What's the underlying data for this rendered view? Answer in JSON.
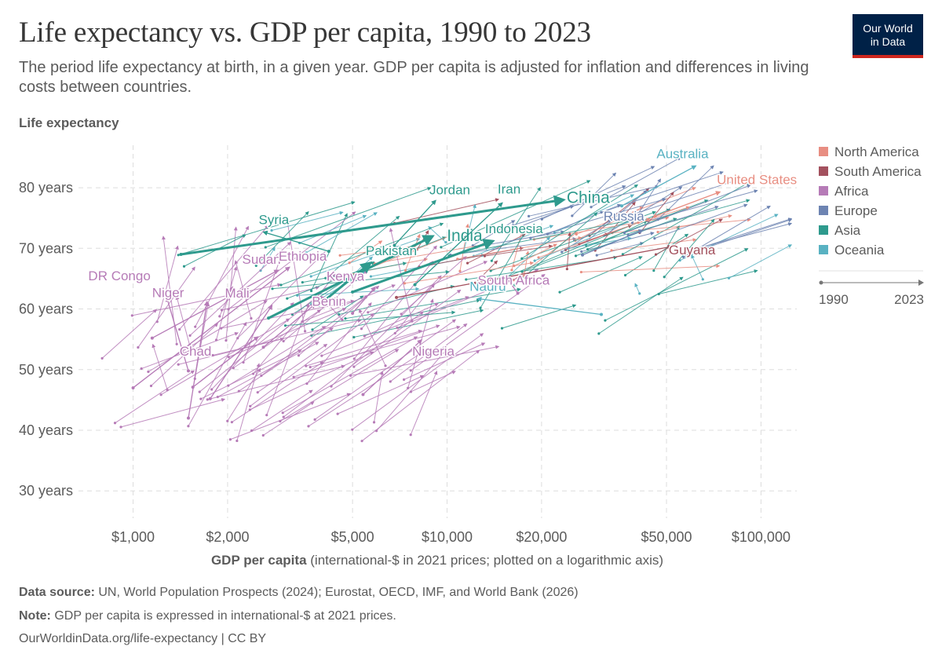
{
  "header": {
    "title": "Life expectancy vs. GDP per capita, 1990 to 2023",
    "subtitle": "The period life expectancy at birth, in a given year. GDP per capita is adjusted for inflation and differences in living costs between countries.",
    "logo_line1": "Our World",
    "logo_line2": "in Data"
  },
  "footer": {
    "source_label": "Data source:",
    "source_text": "UN, World Population Prospects (2024); Eurostat, OECD, IMF, and World Bank (2026)",
    "note_label": "Note:",
    "note_text": "GDP per capita is expressed in international-$ at 2021 prices.",
    "url_text": "OurWorldinData.org/life-expectancy | CC BY"
  },
  "chart_data": {
    "type": "scatter",
    "xlabel_bold": "GDP per capita",
    "xlabel_rest": "(international-$ in 2021 prices; plotted on a logarithmic axis)",
    "ylabel": "Life expectancy",
    "x_scale": "log",
    "xlim": [
      670,
      130000
    ],
    "ylim": [
      25.5,
      87
    ],
    "x_ticks": [
      {
        "value": 1000,
        "label": "$1,000"
      },
      {
        "value": 2000,
        "label": "$2,000"
      },
      {
        "value": 5000,
        "label": "$5,000"
      },
      {
        "value": 10000,
        "label": "$10,000"
      },
      {
        "value": 20000,
        "label": "$20,000"
      },
      {
        "value": 50000,
        "label": "$50,000"
      },
      {
        "value": 100000,
        "label": "$100,000"
      }
    ],
    "y_ticks": [
      {
        "value": 30,
        "label": "30 years"
      },
      {
        "value": 40,
        "label": "40 years"
      },
      {
        "value": 50,
        "label": "50 years"
      },
      {
        "value": 60,
        "label": "60 years"
      },
      {
        "value": 70,
        "label": "70 years"
      },
      {
        "value": 80,
        "label": "80 years"
      }
    ],
    "grid": true,
    "legend_position": "right",
    "legend": [
      {
        "region": "North America",
        "color": "#e56e5a"
      },
      {
        "region": "South America",
        "color": "#9a5129"
      },
      {
        "region": "Africa",
        "color": "#a2559c"
      },
      {
        "region": "Europe",
        "color": "#4c6a9c"
      },
      {
        "region": "Asia",
        "color": "#00847e"
      },
      {
        "region": "Oceania",
        "color": "#38aaba"
      }
    ],
    "legend_colors_display": {
      "North America": "#e88e82",
      "South America": "#a3515e",
      "Africa": "#b67bb7",
      "Europe": "#6d84b2",
      "Asia": "#2e9a8d",
      "Oceania": "#59b2c2"
    },
    "time_legend": {
      "start": "1990",
      "end": "2023"
    },
    "series": [
      {
        "name": "China",
        "region": "Asia",
        "x": [
          1990,
          2023
        ],
        "gdp": [
          1420,
          23500
        ],
        "life": [
          69.0,
          78.0
        ],
        "label": "China",
        "label_size": "large",
        "emphasis": true
      },
      {
        "name": "India",
        "region": "Asia",
        "x": [
          1990,
          2023
        ],
        "gdp": [
          2700,
          9000
        ],
        "life": [
          58.5,
          72.0
        ],
        "label": "India",
        "label_size": "large",
        "emphasis": true
      },
      {
        "name": "Indonesia",
        "region": "Asia",
        "gdp": [
          5000,
          14000
        ],
        "life": [
          62.8,
          71.2
        ],
        "label": "Indonesia",
        "emphasis": true
      },
      {
        "name": "Pakistan",
        "region": "Asia",
        "gdp": [
          3900,
          5700
        ],
        "life": [
          60.6,
          67.6
        ],
        "label": "Pakistan",
        "emphasis": true
      },
      {
        "name": "Iran",
        "region": "Asia",
        "gdp": [
          7900,
          15000
        ],
        "life": [
          64.0,
          77.5
        ],
        "label": "Iran"
      },
      {
        "name": "Jordan",
        "region": "Asia",
        "gdp": [
          6800,
          9200
        ],
        "life": [
          70.5,
          77.9
        ],
        "label": "Jordan"
      },
      {
        "name": "Syria",
        "region": "Asia",
        "gdp": [
          4200,
          2600
        ],
        "life": [
          69.5,
          72.7
        ],
        "label": "Syria"
      },
      {
        "name": "United States",
        "region": "North America",
        "gdp": [
          46000,
          74000
        ],
        "life": [
          75.3,
          79.3
        ],
        "label": "United States"
      },
      {
        "name": "Guyana",
        "region": "South America",
        "gdp": [
          6900,
          52000
        ],
        "life": [
          61.9,
          70.3
        ],
        "label": "Guyana"
      },
      {
        "name": "Australia",
        "region": "Oceania",
        "gdp": [
          36000,
          62000
        ],
        "life": [
          77.0,
          83.6
        ],
        "label": "Australia"
      },
      {
        "name": "Nauru",
        "region": "Oceania",
        "gdp": [
          31000,
          12500
        ],
        "life": [
          59.1,
          61.7
        ],
        "label": "Nauru"
      },
      {
        "name": "Russia",
        "region": "Europe",
        "gdp": [
          27000,
          42000
        ],
        "life": [
          68.9,
          73.0
        ],
        "label": "Russia"
      },
      {
        "name": "Sudan",
        "region": "Africa",
        "gdp": [
          1150,
          2900
        ],
        "life": [
          55.2,
          66.4
        ],
        "label": "Sudan"
      },
      {
        "name": "Ethiopia",
        "region": "Africa",
        "gdp": [
          1000,
          3150
        ],
        "life": [
          47.0,
          66.9
        ],
        "label": "Ethiopia"
      },
      {
        "name": "DR Congo",
        "region": "Africa",
        "gdp": [
          1500,
          1280
        ],
        "life": [
          49.8,
          61.9
        ],
        "label": "DR Congo"
      },
      {
        "name": "Niger",
        "region": "Africa",
        "gdp": [
          1500,
          1720
        ],
        "life": [
          42.0,
          61.2
        ],
        "label": "Niger"
      },
      {
        "name": "Mali",
        "region": "Africa",
        "gdp": [
          1760,
          2770
        ],
        "life": [
          45.2,
          60.6
        ],
        "label": "Mali"
      },
      {
        "name": "Benin",
        "region": "Africa",
        "gdp": [
          2600,
          3800
        ],
        "life": [
          53.7,
          60.8
        ],
        "label": "Benin"
      },
      {
        "name": "Kenya",
        "region": "Africa",
        "gdp": [
          5000,
          5900
        ],
        "life": [
          59.3,
          63.6
        ],
        "label": "Kenya"
      },
      {
        "name": "Chad",
        "region": "Africa",
        "gdp": [
          1550,
          2500
        ],
        "life": [
          47.1,
          55.4
        ],
        "label": "Chad"
      },
      {
        "name": "Nigeria",
        "region": "Africa",
        "gdp": [
          5400,
          8300
        ],
        "life": [
          45.9,
          54.9
        ],
        "label": "Nigeria"
      },
      {
        "name": "South Africa",
        "region": "Africa",
        "gdp": [
          16800,
          15400
        ],
        "life": [
          62.6,
          65.3
        ],
        "label": "South Africa"
      }
    ],
    "background_series_note": "Several hundred additional unlabeled country arrows (1990 start to 2023 end) are drawn in the same regional colors."
  }
}
